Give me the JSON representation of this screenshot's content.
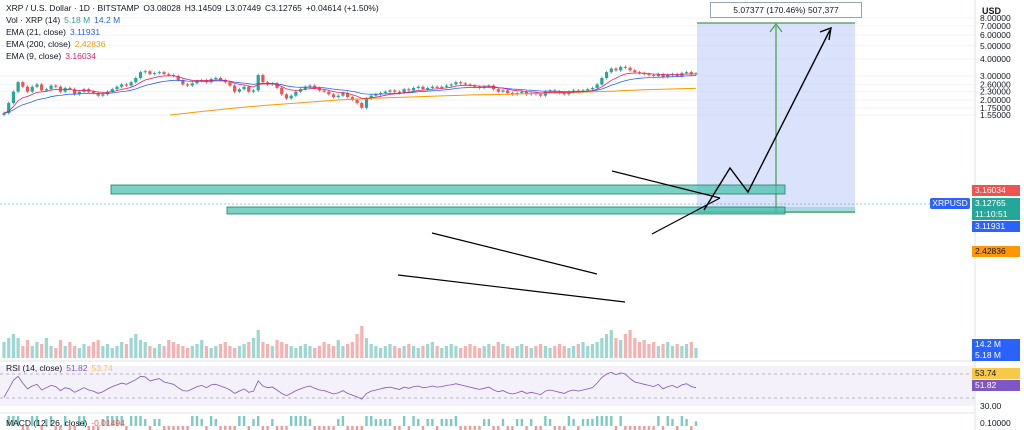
{
  "header": {
    "symbol_line": "XRP / U.S. Dollar · 1D · BITSTAMP",
    "ohlc": {
      "o": "O3.08028",
      "h": "H3.14509",
      "l": "L3.07449",
      "c": "C3.12765",
      "chg": "+0.04614 (+1.50%)"
    },
    "vol_label": "Vol · XRP (14)",
    "vol_1": "5.18 M",
    "vol_2": "14.2 M",
    "ema21_label": "EMA (21, close)",
    "ema21": "3.11931",
    "ema200_label": "EMA (200, close)",
    "ema200": "2.42836",
    "ema9_label": "EMA (9, close)",
    "ema9": "3.16034"
  },
  "currency": "USD",
  "measure": {
    "label": "5.07377 (170.46%) 507,377"
  },
  "price_tags": {
    "ema9": "3.16034",
    "symbol": "XRPUSD",
    "last": "3.12765",
    "countdown": "11:10:51",
    "ema21": "3.11931",
    "ema200": "2.42836",
    "vol_14": "14.2 M",
    "vol_1": "5.18 M"
  },
  "rsi": {
    "label": "RSI (14, close)",
    "v1": "51.82",
    "v2": "53.74",
    "axis": [
      "53.74",
      "51.82",
      "30.00"
    ]
  },
  "macd": {
    "label": "MACD (12, 26, close)",
    "v1": "-0.01494",
    "axis": "0.10000"
  },
  "colors": {
    "up": "#26a69a",
    "down": "#ef5350",
    "ema21": "#2962ff",
    "ema200": "#ff9800",
    "ema9": "#e91e63",
    "rsi": "#7e57c2",
    "zone": "#4ec2b0",
    "projection": "#bcccf7"
  },
  "chart_data": {
    "type": "candlestick",
    "log_scale": true,
    "y_ticks": [
      8.0,
      7.0,
      6.0,
      5.0,
      4.0,
      3.0,
      2.6,
      2.3,
      2.0,
      1.75,
      1.55
    ],
    "y_tick_labels": [
      "8.00000",
      "7.00000",
      "6.00000",
      "5.00000",
      "4.00000",
      "3.00000",
      "2.60000",
      "2.30000",
      "2.00000",
      "1.75000",
      "1.55000"
    ],
    "closes": [
      1.6,
      1.9,
      2.3,
      2.7,
      2.5,
      2.3,
      2.5,
      2.6,
      2.35,
      2.4,
      2.55,
      2.5,
      2.3,
      2.45,
      2.4,
      2.2,
      2.3,
      2.4,
      2.3,
      2.25,
      2.15,
      2.2,
      2.3,
      2.4,
      2.5,
      2.6,
      2.55,
      2.7,
      2.9,
      3.2,
      3.25,
      3.1,
      3.15,
      3.2,
      3.1,
      3.05,
      3.0,
      2.8,
      2.6,
      2.55,
      2.65,
      2.75,
      2.8,
      2.7,
      2.85,
      2.9,
      2.8,
      2.7,
      2.55,
      2.3,
      2.4,
      2.5,
      2.3,
      2.35,
      3.05,
      2.7,
      2.6,
      2.65,
      2.45,
      2.2,
      2.05,
      2.15,
      2.3,
      2.4,
      2.5,
      2.55,
      2.45,
      2.35,
      2.3,
      2.2,
      2.1,
      2.15,
      2.25,
      2.1,
      2.0,
      1.9,
      1.75,
      2.05,
      2.15,
      2.2,
      2.25,
      2.3,
      2.35,
      2.3,
      2.25,
      2.4,
      2.35,
      2.45,
      2.5,
      2.4,
      2.45,
      2.5,
      2.45,
      2.5,
      2.55,
      2.6,
      2.7,
      2.65,
      2.6,
      2.55,
      2.5,
      2.45,
      2.5,
      2.55,
      2.4,
      2.3,
      2.35,
      2.25,
      2.2,
      2.25,
      2.3,
      2.2,
      2.25,
      2.2,
      2.15,
      2.3,
      2.35,
      2.3,
      2.25,
      2.2,
      2.3,
      2.35,
      2.3,
      2.35,
      2.4,
      2.45,
      2.6,
      2.9,
      3.2,
      3.4,
      3.3,
      3.5,
      3.45,
      3.3,
      3.2,
      3.15,
      3.1,
      3.05,
      3.0,
      3.1,
      2.95,
      3.05,
      3.1,
      3.0,
      3.15,
      3.2,
      3.1,
      3.13
    ],
    "ema200": [
      1.55,
      1.6,
      1.65,
      1.7,
      1.75,
      1.8,
      1.84,
      1.88,
      1.92,
      1.96,
      2.0,
      2.03,
      2.06,
      2.08,
      2.1,
      2.12,
      2.14,
      2.16,
      2.18,
      2.19,
      2.2,
      2.22,
      2.24,
      2.26,
      2.28,
      2.3,
      2.32,
      2.35,
      2.38,
      2.4,
      2.42,
      2.43
    ],
    "volume": [
      0.4,
      0.5,
      0.6,
      0.5,
      0.3,
      0.45,
      0.3,
      0.4,
      0.35,
      0.5,
      0.3,
      0.25,
      0.45,
      0.3,
      0.4,
      0.3,
      0.25,
      0.35,
      0.3,
      0.4,
      0.45,
      0.3,
      0.35,
      0.25,
      0.3,
      0.4,
      0.35,
      0.5,
      0.6,
      0.45,
      0.4,
      0.3,
      0.25,
      0.35,
      0.3,
      0.45,
      0.4,
      0.35,
      0.3,
      0.25,
      0.3,
      0.35,
      0.45,
      0.3,
      0.25,
      0.3,
      0.35,
      0.4,
      0.3,
      0.25,
      0.3,
      0.35,
      0.4,
      0.5,
      0.7,
      0.4,
      0.35,
      0.3,
      0.45,
      0.4,
      0.35,
      0.3,
      0.25,
      0.3,
      0.35,
      0.3,
      0.25,
      0.3,
      0.4,
      0.35,
      0.3,
      0.45,
      0.3,
      0.35,
      0.4,
      0.6,
      0.8,
      0.5,
      0.35,
      0.3,
      0.25,
      0.3,
      0.35,
      0.3,
      0.25,
      0.3,
      0.35,
      0.3,
      0.25,
      0.3,
      0.35,
      0.4,
      0.3,
      0.25,
      0.3,
      0.35,
      0.3,
      0.25,
      0.3,
      0.35,
      0.3,
      0.25,
      0.3,
      0.35,
      0.3,
      0.4,
      0.35,
      0.3,
      0.25,
      0.3,
      0.35,
      0.3,
      0.25,
      0.3,
      0.35,
      0.3,
      0.25,
      0.3,
      0.35,
      0.3,
      0.25,
      0.3,
      0.35,
      0.4,
      0.3,
      0.35,
      0.4,
      0.5,
      0.6,
      0.7,
      0.5,
      0.45,
      0.6,
      0.7,
      0.5,
      0.4,
      0.45,
      0.35,
      0.4,
      0.3,
      0.35,
      0.4,
      0.3,
      0.35,
      0.3,
      0.35,
      0.4,
      0.25
    ],
    "rsi": [
      35,
      50,
      65,
      72,
      60,
      50,
      55,
      58,
      48,
      52,
      56,
      54,
      47,
      52,
      50,
      44,
      48,
      52,
      48,
      46,
      42,
      45,
      50,
      54,
      57,
      60,
      58,
      62,
      66,
      72,
      71,
      64,
      66,
      68,
      62,
      60,
      58,
      52,
      47,
      46,
      50,
      54,
      56,
      52,
      57,
      58,
      55,
      52,
      48,
      42,
      46,
      50,
      44,
      46,
      64,
      55,
      52,
      53,
      48,
      42,
      38,
      42,
      47,
      50,
      53,
      55,
      51,
      48,
      47,
      44,
      41,
      43,
      47,
      42,
      39,
      36,
      32,
      42,
      46,
      48,
      50,
      52,
      53,
      51,
      49,
      53,
      51,
      54,
      55,
      52,
      53,
      55,
      53,
      54,
      56,
      57,
      59,
      57,
      55,
      53,
      51,
      49,
      51,
      53,
      48,
      45,
      47,
      43,
      41,
      43,
      46,
      42,
      44,
      42,
      40,
      46,
      48,
      46,
      44,
      42,
      46,
      48,
      46,
      48,
      50,
      52,
      60,
      70,
      76,
      79,
      75,
      78,
      76,
      68,
      62,
      60,
      58,
      56,
      54,
      58,
      50,
      54,
      56,
      52,
      57,
      59,
      54,
      52
    ]
  }
}
